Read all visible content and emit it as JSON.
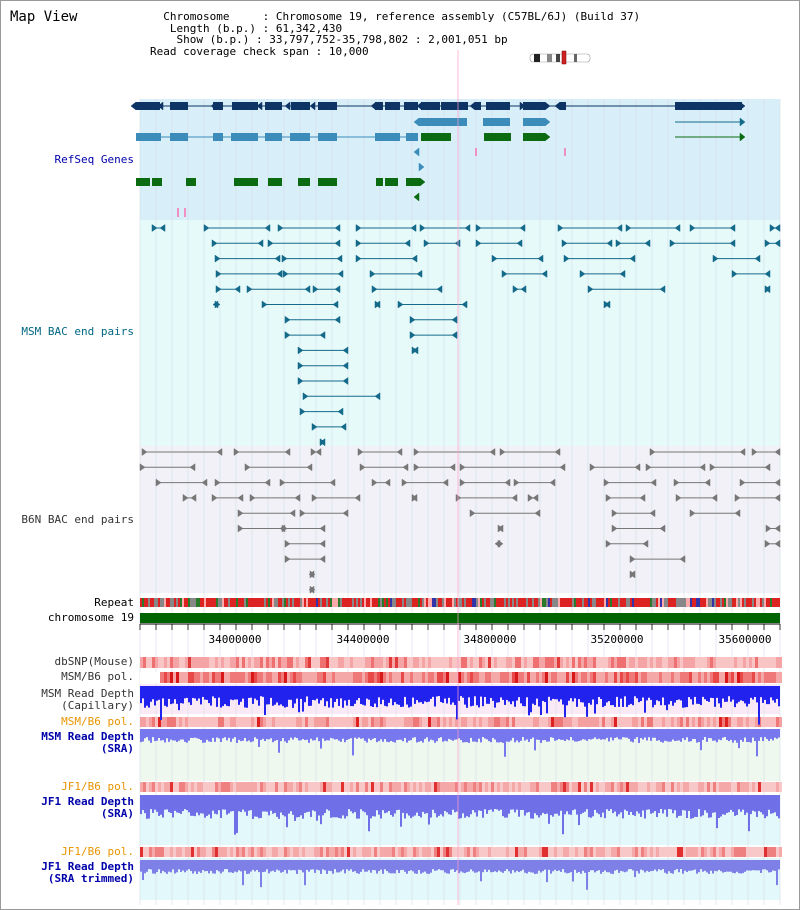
{
  "title": "Map View",
  "info": {
    "chromosome_label": "Chromosome",
    "chromosome_value": "Chromosome 19, reference assembly (C57BL/6J) (Build 37)",
    "length_label": "Length (b.p.)",
    "length_value": "61,342,430",
    "show_label": "Show (b.p.)",
    "show_value": "33,797,752-35,798,802 : 2,001,051 bp",
    "span_label": "Read coverage check span",
    "span_value": "10,000"
  },
  "tracks": {
    "refseq": "RefSeq Genes",
    "msm_bac": "MSM BAC end pairs",
    "b6n_bac": "B6N BAC end pairs",
    "repeat": "Repeat",
    "chromosome": "chromosome 19",
    "dbsnp": "dbSNP(Mouse)",
    "msm_b6_pol_1": "MSM/B6 pol.",
    "msm_read_depth_cap_1": "MSM Read Depth",
    "msm_read_depth_cap_2": "(Capillary)",
    "msm_b6_pol_2": "MSM/B6 pol.",
    "msm_read_depth_sra_1": "MSM Read Depth",
    "msm_read_depth_sra_2": "(SRA)",
    "jf1_b6_pol_1": "JF1/B6 pol.",
    "jf1_read_depth_sra_1": "JF1 Read Depth",
    "jf1_read_depth_sra_2": "(SRA)",
    "jf1_b6_pol_2": "JF1/B6 pol.",
    "jf1_read_depth_trim_1": "JF1 Read Depth",
    "jf1_read_depth_trim_2": "(SRA trimmed)"
  },
  "axis": {
    "ticks": [
      "34000000",
      "34400000",
      "34800000",
      "35200000",
      "35600000"
    ]
  },
  "colors": {
    "refseq_bg": "#d8eef9",
    "msm_bac_bg": "#e6fafa",
    "b6n_bac_bg": "#f1f1f7",
    "gene_dark": "#0d3464",
    "gene_mid": "#3b8cbb",
    "gene_green": "#0b6b10",
    "bac_teal": "#156a8a",
    "bac_gray": "#777777",
    "chromosome_green": "#006400",
    "snp_red": "#ee3333",
    "depth_blue": "#1a1aee",
    "depth_lavender": "#7777ee",
    "label_blue": "#0000aa",
    "label_teal": "#006680",
    "label_orange": "#e89400"
  }
}
